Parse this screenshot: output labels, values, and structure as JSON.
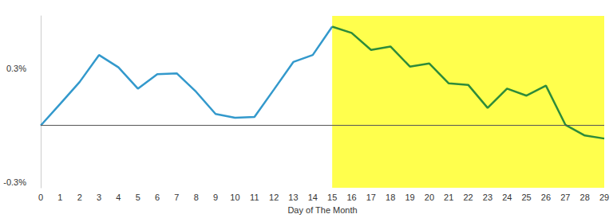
{
  "chart_data": {
    "type": "line",
    "x_label": "Day of The Month",
    "categories": [
      "0",
      "1",
      "2",
      "3",
      "4",
      "5",
      "6",
      "7",
      "8",
      "9",
      "10",
      "11",
      "12",
      "13",
      "14",
      "15",
      "16",
      "17",
      "18",
      "19",
      "20",
      "21",
      "22",
      "23",
      "24",
      "25",
      "26",
      "27",
      "28",
      "29"
    ],
    "series": [
      {
        "color": "#3399cc",
        "values": [
          0,
          0.114,
          0.23,
          0.373,
          0.308,
          0.195,
          0.272,
          0.276,
          0.178,
          0.061,
          0.041,
          0.045,
          0.19,
          0.336,
          0.373,
          0.523,
          null,
          null,
          null,
          null,
          null,
          null,
          null,
          null,
          null,
          null,
          null,
          null,
          null,
          null
        ]
      },
      {
        "color": "#2e8b3a",
        "values": [
          null,
          null,
          null,
          null,
          null,
          null,
          null,
          null,
          null,
          null,
          null,
          null,
          null,
          null,
          null,
          0.523,
          0.49,
          0.4,
          0.418,
          0.312,
          0.328,
          0.223,
          0.215,
          0.093,
          0.195,
          0.158,
          0.211,
          0.004,
          -0.053,
          -0.069
        ]
      }
    ],
    "ylim": [
      -0.33,
      0.58
    ],
    "yticks": [
      {
        "value": -0.3,
        "label": "-0.3%"
      },
      {
        "value": 0.3,
        "label": "0.3%"
      }
    ],
    "hline": 0,
    "highlight": {
      "start": 15,
      "end": 29,
      "color": "#ffff4d"
    },
    "grid": false
  }
}
